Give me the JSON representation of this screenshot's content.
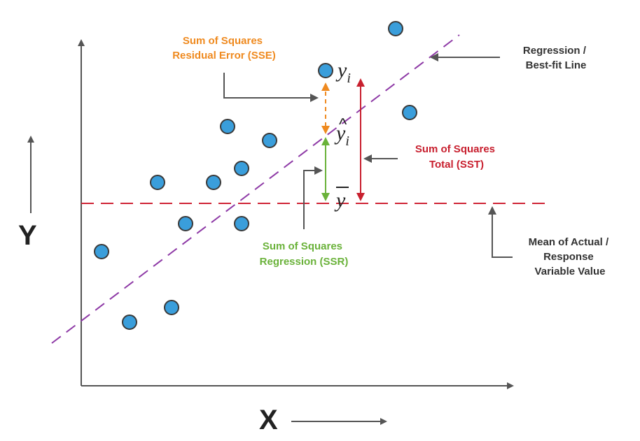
{
  "colors": {
    "axis": "#555555",
    "point_fill": "#3a9edb",
    "point_stroke": "#3a3a3a",
    "regression_line": "#8e3aa6",
    "mean_line": "#cf2436",
    "sse": "#ef8a1f",
    "ssr": "#6ab23a",
    "sst": "#c8202f",
    "annotation": "#333333"
  },
  "axes": {
    "x_label": "X",
    "y_label": "Y"
  },
  "labels": {
    "sse": [
      "Sum of Squares",
      "Residual Error (SSE)"
    ],
    "sst": [
      "Sum of Squares",
      "Total (SST)"
    ],
    "ssr": [
      "Sum of Squares",
      "Regression (SSR)"
    ],
    "regression": [
      "Regression /",
      "Best-fit Line"
    ],
    "mean": [
      "Mean of Actual /",
      "Response",
      "Variable Value"
    ]
  },
  "math": {
    "y_i": "y",
    "y_hat_i": "y",
    "hat": "^",
    "subscript": "i",
    "y_bar": "y"
  },
  "icons": [
    "point-icon",
    "arrow-icon"
  ]
}
